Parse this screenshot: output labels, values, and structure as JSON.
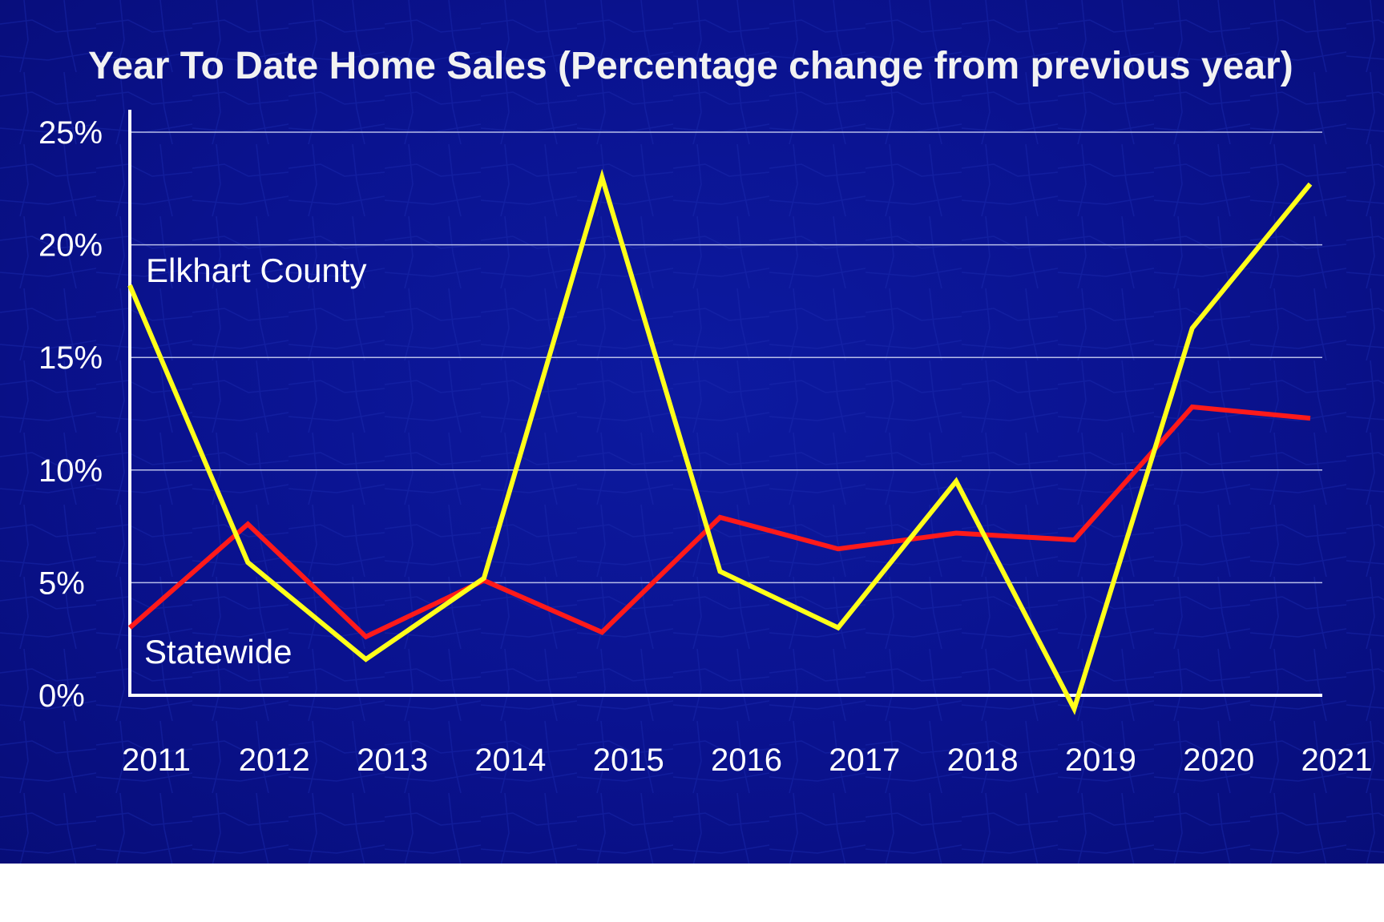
{
  "chart_data": {
    "type": "line",
    "title": "Year To Date Home Sales (Percentage change from previous year)",
    "xlabel": "",
    "ylabel": "",
    "categories": [
      "2011",
      "2012",
      "2013",
      "2014",
      "2015",
      "2016",
      "2017",
      "2018",
      "2019",
      "2020",
      "2021"
    ],
    "y_ticks": [
      "0%",
      "5%",
      "10%",
      "15%",
      "20%",
      "25%"
    ],
    "ylim": [
      0,
      25
    ],
    "grid": true,
    "legend": "none",
    "series": [
      {
        "name": "Elkhart County",
        "color": "#ffff1a",
        "values": [
          18.2,
          5.9,
          1.6,
          5.2,
          23.0,
          5.5,
          3.0,
          9.5,
          -0.6,
          16.3,
          22.7
        ]
      },
      {
        "name": "Statewide",
        "color": "#ff1a1a",
        "values": [
          3.0,
          7.6,
          2.6,
          5.1,
          2.8,
          7.9,
          6.5,
          7.2,
          6.9,
          12.8,
          12.3
        ]
      }
    ]
  }
}
